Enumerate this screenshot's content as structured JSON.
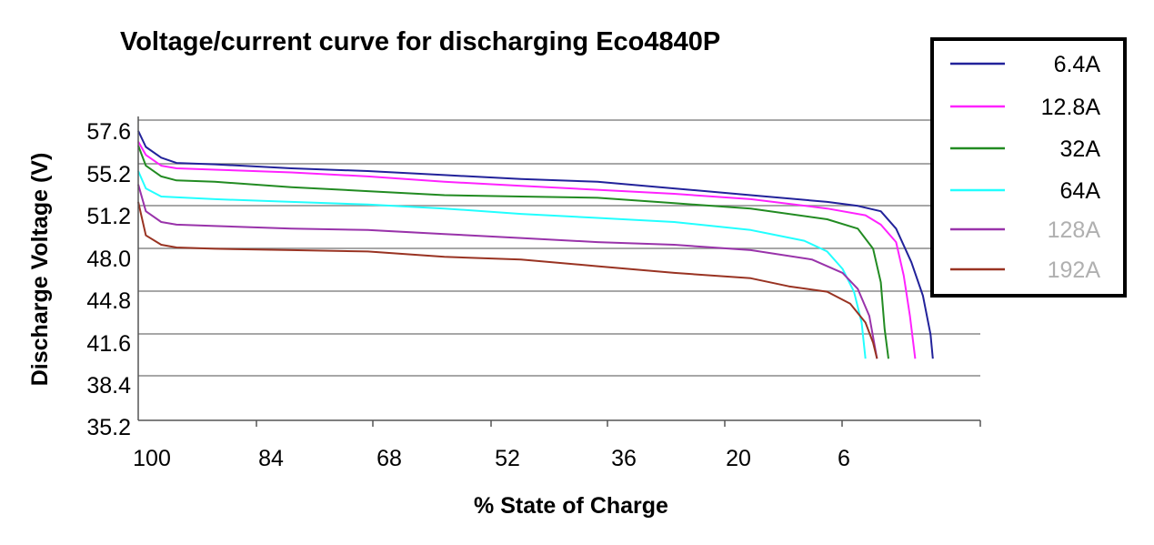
{
  "chart_data": {
    "type": "line",
    "title": "Voltage/current curve for discharging Eco4840P",
    "xlabel": "% State of Charge",
    "ylabel": "Discharge Voltage (V)",
    "x_ticks": [
      "100",
      "84",
      "68",
      "52",
      "36",
      "20",
      "6"
    ],
    "y_ticks": [
      "57.6",
      "55.2",
      "51.2",
      "48.0",
      "44.8",
      "41.6",
      "38.4",
      "35.2"
    ],
    "xlim": [
      100,
      -10
    ],
    "ylim": [
      35.2,
      57.6
    ],
    "grid": "horizontal",
    "legend_position": "top-right",
    "series": [
      {
        "name": "6.4A",
        "color": "#22229a",
        "label_color": "#000000",
        "points": [
          [
            100,
            56.8
          ],
          [
            99,
            55.6
          ],
          [
            97,
            54.8
          ],
          [
            95,
            54.4
          ],
          [
            90,
            54.3
          ],
          [
            80,
            54.0
          ],
          [
            70,
            53.8
          ],
          [
            60,
            53.5
          ],
          [
            50,
            53.2
          ],
          [
            40,
            53.0
          ],
          [
            30,
            52.5
          ],
          [
            20,
            52.0
          ],
          [
            10,
            51.5
          ],
          [
            6,
            51.2
          ],
          [
            3,
            50.8
          ],
          [
            1,
            49.5
          ],
          [
            -1,
            47.0
          ],
          [
            -2.5,
            44.5
          ],
          [
            -3.5,
            41.6
          ],
          [
            -3.8,
            39.8
          ]
        ]
      },
      {
        "name": "12.8A",
        "color": "#ff22ff",
        "label_color": "#000000",
        "points": [
          [
            100,
            56.0
          ],
          [
            99,
            55.0
          ],
          [
            97,
            54.2
          ],
          [
            95,
            54.0
          ],
          [
            90,
            53.9
          ],
          [
            80,
            53.7
          ],
          [
            70,
            53.4
          ],
          [
            60,
            53.0
          ],
          [
            50,
            52.7
          ],
          [
            40,
            52.4
          ],
          [
            30,
            52.1
          ],
          [
            20,
            51.7
          ],
          [
            10,
            51.0
          ],
          [
            5,
            50.5
          ],
          [
            3,
            49.8
          ],
          [
            1,
            48.5
          ],
          [
            0,
            46.0
          ],
          [
            -0.8,
            43.0
          ],
          [
            -1.5,
            39.8
          ]
        ]
      },
      {
        "name": "32A",
        "color": "#228b22",
        "label_color": "#000000",
        "points": [
          [
            100,
            55.7
          ],
          [
            99,
            54.2
          ],
          [
            97,
            53.4
          ],
          [
            95,
            53.1
          ],
          [
            90,
            53.0
          ],
          [
            80,
            52.6
          ],
          [
            70,
            52.3
          ],
          [
            60,
            52.0
          ],
          [
            50,
            51.9
          ],
          [
            40,
            51.8
          ],
          [
            30,
            51.4
          ],
          [
            20,
            51.0
          ],
          [
            10,
            50.2
          ],
          [
            6,
            49.5
          ],
          [
            4,
            48.0
          ],
          [
            3,
            45.5
          ],
          [
            2.5,
            42.0
          ],
          [
            2,
            39.8
          ]
        ]
      },
      {
        "name": "64A",
        "color": "#22ffff",
        "label_color": "#000000",
        "points": [
          [
            100,
            53.8
          ],
          [
            99,
            52.5
          ],
          [
            97,
            51.9
          ],
          [
            90,
            51.7
          ],
          [
            80,
            51.5
          ],
          [
            70,
            51.3
          ],
          [
            60,
            51.0
          ],
          [
            50,
            50.6
          ],
          [
            40,
            50.3
          ],
          [
            30,
            50.0
          ],
          [
            20,
            49.4
          ],
          [
            13,
            48.6
          ],
          [
            10,
            47.8
          ],
          [
            8,
            46.5
          ],
          [
            6.5,
            44.8
          ],
          [
            5.5,
            42.5
          ],
          [
            5,
            39.8
          ]
        ]
      },
      {
        "name": "128A",
        "color": "#9933aa",
        "label_color": "#b0b0b0",
        "points": [
          [
            100,
            52.8
          ],
          [
            99,
            50.8
          ],
          [
            97,
            50.0
          ],
          [
            95,
            49.8
          ],
          [
            90,
            49.7
          ],
          [
            80,
            49.5
          ],
          [
            70,
            49.4
          ],
          [
            60,
            49.1
          ],
          [
            50,
            48.8
          ],
          [
            40,
            48.5
          ],
          [
            30,
            48.3
          ],
          [
            20,
            47.9
          ],
          [
            12,
            47.2
          ],
          [
            8,
            46.2
          ],
          [
            6,
            45.0
          ],
          [
            4.5,
            43.0
          ],
          [
            3.5,
            39.8
          ]
        ]
      },
      {
        "name": "192A",
        "color": "#993322",
        "label_color": "#b0b0b0",
        "points": [
          [
            100,
            51.5
          ],
          [
            99,
            49.0
          ],
          [
            97,
            48.3
          ],
          [
            95,
            48.1
          ],
          [
            90,
            48.0
          ],
          [
            80,
            47.9
          ],
          [
            70,
            47.8
          ],
          [
            60,
            47.4
          ],
          [
            50,
            47.2
          ],
          [
            40,
            46.7
          ],
          [
            30,
            46.2
          ],
          [
            20,
            45.8
          ],
          [
            15,
            45.2
          ],
          [
            10,
            44.8
          ],
          [
            7,
            43.9
          ],
          [
            5,
            42.5
          ],
          [
            4,
            41.0
          ],
          [
            3.5,
            39.8
          ]
        ]
      }
    ]
  }
}
